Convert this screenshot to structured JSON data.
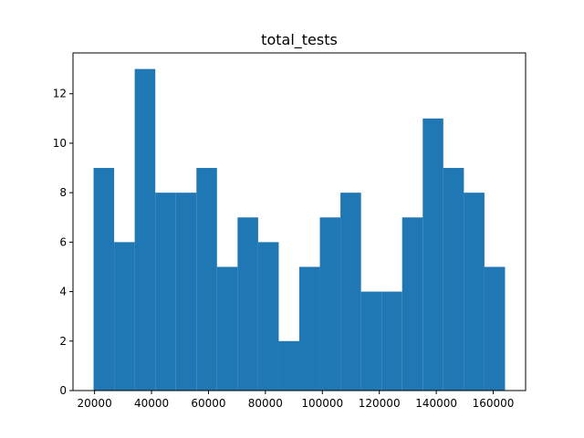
{
  "chart_data": {
    "type": "bar",
    "title": "total_tests",
    "xlabel": "",
    "ylabel": "",
    "bar_color": "#1f77b4",
    "bin_edges": [
      19650,
      26875,
      34100,
      41325,
      48550,
      55775,
      63000,
      70225,
      77450,
      84675,
      91900,
      99125,
      106350,
      113575,
      120800,
      128025,
      135250,
      142475,
      149700,
      156925,
      164150
    ],
    "values": [
      9,
      6,
      13,
      8,
      8,
      9,
      5,
      7,
      6,
      2,
      5,
      7,
      8,
      4,
      4,
      7,
      11,
      9,
      8,
      5
    ],
    "xlim": [
      12425,
      171375
    ],
    "ylim": [
      0,
      13.65
    ],
    "x_ticks": [
      20000,
      40000,
      60000,
      80000,
      100000,
      120000,
      140000,
      160000
    ],
    "x_tick_labels": [
      "20000",
      "40000",
      "60000",
      "80000",
      "100000",
      "120000",
      "140000",
      "160000"
    ],
    "y_ticks": [
      0,
      2,
      4,
      6,
      8,
      10,
      12
    ],
    "y_tick_labels": [
      "0",
      "2",
      "4",
      "6",
      "8",
      "10",
      "12"
    ],
    "grid": false,
    "legend": "none"
  }
}
